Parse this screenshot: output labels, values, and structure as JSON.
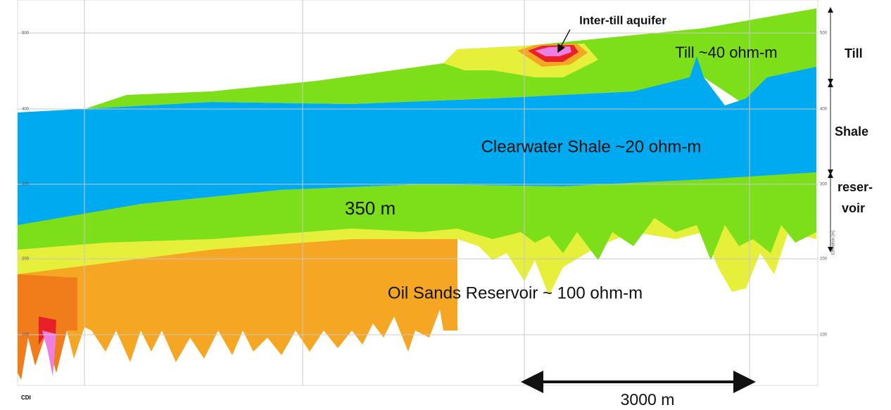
{
  "annotations": {
    "aquifer": "Inter-till aquifer",
    "till": "Till ~40 ohm-m",
    "shale": "Clearwater Shale ~20 ohm-m",
    "thickness": "350 m",
    "reservoir": "Oil Sands Reservoir ~ 100 ohm-m"
  },
  "layers": {
    "till": "Till",
    "shale": "Shale",
    "reservoir_1": "reser-",
    "reservoir_2": "voir"
  },
  "scale_bar": "3000 m",
  "section_label": "CDI",
  "axis_label": "Elevation (m)",
  "left_ticks": [
    "500",
    "400",
    "300",
    "200",
    "100"
  ],
  "right_ticks": [
    "500",
    "400",
    "300",
    "200",
    "100"
  ]
}
